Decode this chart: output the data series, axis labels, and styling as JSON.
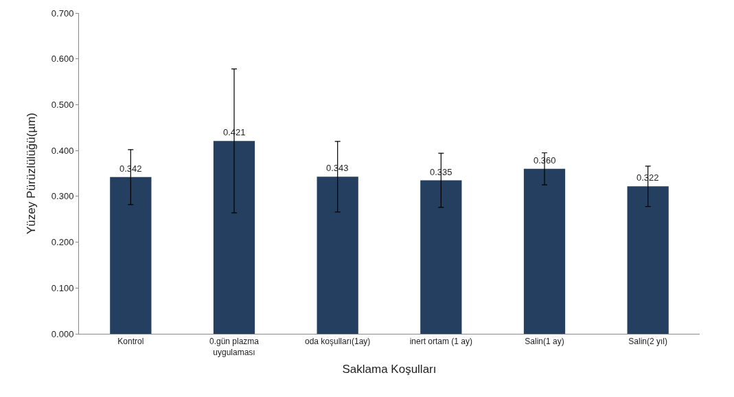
{
  "chart_data": {
    "type": "bar",
    "xlabel": "Saklama Koşulları",
    "ylabel": "Yüzey Pürüzlülüğü(µm)",
    "categories": [
      "Kontrol",
      "0.gün plazma\nuygulaması",
      "oda koşulları(1ay)",
      "inert ortam (1 ay)",
      "Salin(1 ay)",
      "Salin(2 yıl)"
    ],
    "values": [
      0.342,
      0.421,
      0.343,
      0.335,
      0.36,
      0.322
    ],
    "errors": [
      0.06,
      0.157,
      0.077,
      0.059,
      0.035,
      0.044
    ],
    "value_labels": [
      "0.342",
      "0.421",
      "0.343",
      "0.335",
      "0.360",
      "0.322"
    ],
    "color": "#243f60",
    "grid": false,
    "ylim": [
      0,
      0.7
    ],
    "yticks": [
      {
        "value": 0,
        "label": "0.000"
      },
      {
        "value": 0.1,
        "label": "0.100"
      },
      {
        "value": 0.2,
        "label": "0.200"
      },
      {
        "value": 0.3,
        "label": "0.300"
      },
      {
        "value": 0.4,
        "label": "0.400"
      },
      {
        "value": 0.5,
        "label": "0.500"
      },
      {
        "value": 0.6,
        "label": "0.600"
      },
      {
        "value": 0.7,
        "label": "0.700"
      }
    ]
  }
}
